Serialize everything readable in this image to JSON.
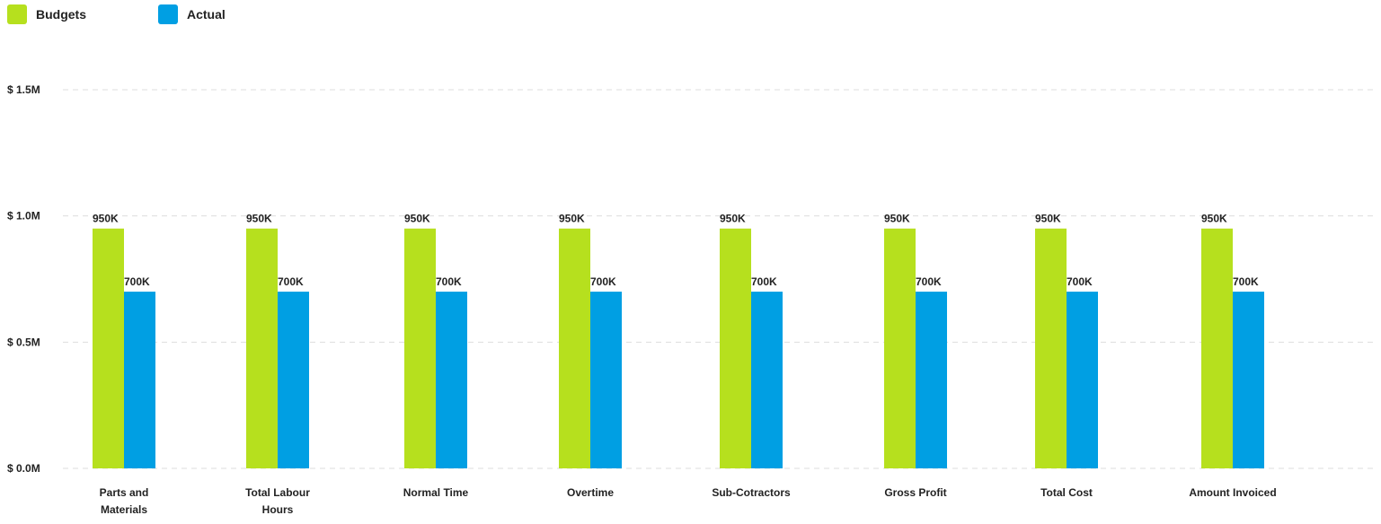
{
  "colors": {
    "budgets": "#b6e01e",
    "actual": "#009fe3",
    "grid": "#dddddd",
    "text": "#222222"
  },
  "chart_data": {
    "type": "bar",
    "categories": [
      "Parts and Materials",
      "Total Labour Hours",
      "Normal Time",
      "Overtime",
      "Sub-Cotractors",
      "Gross Profit",
      "Total Cost",
      "Amount Invoiced"
    ],
    "series": [
      {
        "name": "Budgets",
        "values": [
          950000,
          950000,
          950000,
          950000,
          950000,
          950000,
          950000,
          950000
        ],
        "labels": [
          "950K",
          "950K",
          "950K",
          "950K",
          "950K",
          "950K",
          "950K",
          "950K"
        ]
      },
      {
        "name": "Actual",
        "values": [
          700000,
          700000,
          700000,
          700000,
          700000,
          700000,
          700000,
          700000
        ],
        "labels": [
          "700K",
          "700K",
          "700K",
          "700K",
          "700K",
          "700K",
          "700K",
          "700K"
        ]
      }
    ],
    "yticks": [
      0,
      500000,
      1000000,
      1500000
    ],
    "ytick_labels": [
      "$ 0.0M",
      "$ 0.5M",
      "$ 1.0M",
      "$ 1.5M"
    ],
    "ylim": [
      0,
      1500000
    ],
    "grid": true,
    "legend_position": "top-left"
  }
}
